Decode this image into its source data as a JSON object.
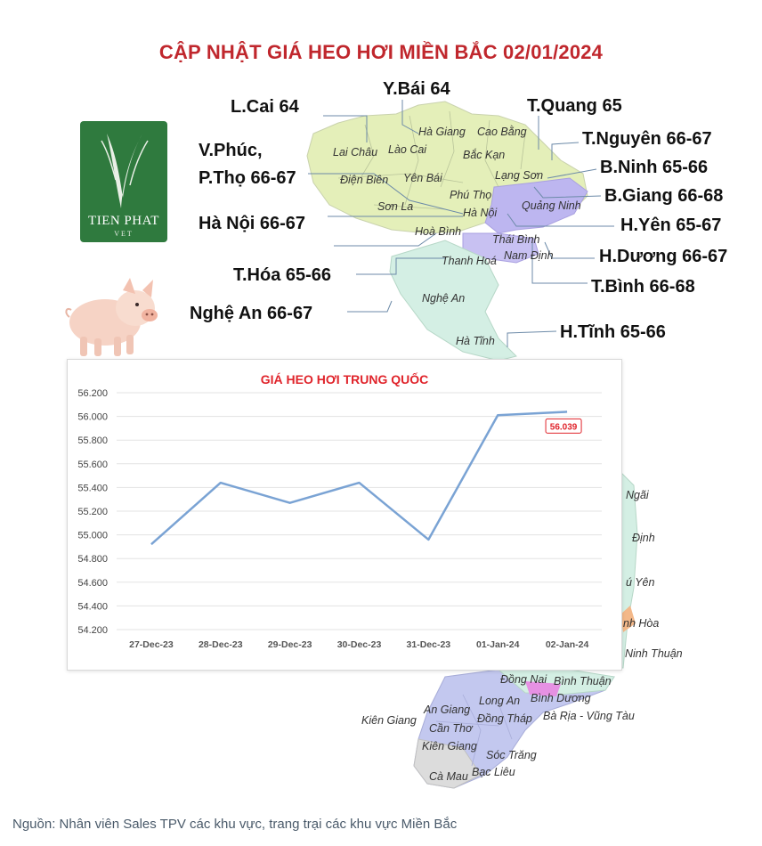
{
  "title": "CẬP NHẬT GIÁ HEO HƠI MIỀN BẮC  02/01/2024",
  "logo": {
    "text": "TIEN PHAT",
    "sub": "VET",
    "name": "tien-phat-vet-logo"
  },
  "regions": [
    {
      "id": "lcai",
      "label": "L.Cai 64"
    },
    {
      "id": "ybai",
      "label": "Y.Bái 64"
    },
    {
      "id": "tquang",
      "label": "T.Quang 65"
    },
    {
      "id": "tnguyen",
      "label": "T.Nguyên 66-67"
    },
    {
      "id": "bninh",
      "label": "B.Ninh 65-66"
    },
    {
      "id": "bgiang",
      "label": "B.Giang 66-68"
    },
    {
      "id": "hyen",
      "label": "H.Yên 65-67"
    },
    {
      "id": "hduong",
      "label": "H.Dương 66-67"
    },
    {
      "id": "tbinh",
      "label": "T.Bình 66-68"
    },
    {
      "id": "htinh",
      "label": "H.Tĩnh 65-66"
    },
    {
      "id": "vphuc1",
      "label": "V.Phúc,"
    },
    {
      "id": "vphuc2",
      "label": "P.Thọ 66-67"
    },
    {
      "id": "hanoi",
      "label": "Hà Nội 66-67"
    },
    {
      "id": "thoa",
      "label": "T.Hóa 65-66"
    },
    {
      "id": "nghean",
      "label": "Nghệ An 66-67"
    }
  ],
  "provinces": [
    "Hà Giang",
    "Cao Bằng",
    "Lai Châu",
    "Lào Cai",
    "Bắc Kạn",
    "Lạng Sơn",
    "Điện Biên",
    "Yên Bái",
    "Phú Thọ",
    "Quảng Ninh",
    "Sơn La",
    "Hà Nội",
    "Hoà Bình",
    "Thái Bình",
    "Nam Định",
    "Thanh Hoá",
    "Nghệ An",
    "Hà Tĩnh",
    "Ngãi",
    "Định",
    "ú Yên",
    "nh Hòa",
    "Ninh Thuận",
    "Đồng Nai",
    "Bình Thuận",
    "Bình Dương",
    "Long An",
    "An Giang",
    "Đồng Tháp",
    "Bà Rịa - Vũng Tàu",
    "Kiên Giang",
    "Cần Thơ",
    "Kiên Giang",
    "Sóc Trăng",
    "Cà Mau",
    "Bạc Liêu"
  ],
  "colors": {
    "title": "#c0272d",
    "chart_title": "#e0242b",
    "line": "#7aa3d4",
    "map_green": "#e4efb9",
    "map_teal": "#d4efe4",
    "map_purple": "#bdb6f0",
    "logo_green": "#2f7a3e"
  },
  "chart_data": {
    "type": "line",
    "title": "GIÁ HEO HƠI TRUNG QUỐC",
    "categories": [
      "27-Dec-23",
      "28-Dec-23",
      "29-Dec-23",
      "30-Dec-23",
      "31-Dec-23",
      "01-Jan-24",
      "02-Jan-24"
    ],
    "series": [
      {
        "values": [
          54.92,
          55.44,
          55.27,
          55.44,
          54.96,
          56.01,
          56.039
        ]
      }
    ],
    "yticks": [
      "56.200",
      "56.000",
      "55.800",
      "55.600",
      "55.400",
      "55.200",
      "55.000",
      "54.800",
      "54.600",
      "54.400",
      "54.200"
    ],
    "ylim": [
      54.2,
      56.2
    ],
    "data_label": "56.039",
    "grid": true,
    "legend": false
  },
  "source": "Nguồn: Nhân viên Sales TPV các khu vực, trang trại các khu vực Miền Bắc"
}
